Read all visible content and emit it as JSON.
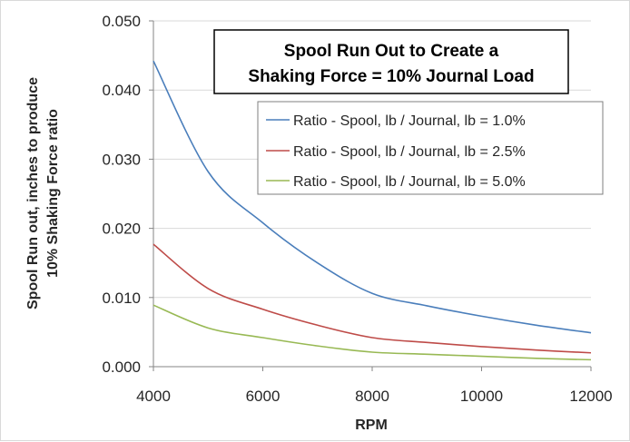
{
  "chart_data": {
    "type": "line",
    "title_lines": [
      "Spool Run Out to Create a",
      "Shaking Force = 10% Journal Load"
    ],
    "xlabel": "RPM",
    "ylabel_lines": [
      "Spool Run out, inches to produce",
      "10% Shaking Force ratio"
    ],
    "xlim": [
      4000,
      12000
    ],
    "ylim": [
      0,
      0.05
    ],
    "x_ticks": [
      4000,
      6000,
      8000,
      10000,
      12000
    ],
    "x_tick_labels": [
      "4000",
      "6000",
      "8000",
      "10000",
      "12000"
    ],
    "y_ticks": [
      0,
      0.01,
      0.02,
      0.03,
      0.04,
      0.05
    ],
    "y_tick_labels": [
      "0.000",
      "0.010",
      "0.020",
      "0.030",
      "0.040",
      "0.050"
    ],
    "grid": "horizontal",
    "legend_position": "top-right",
    "x": [
      4000,
      5000,
      6000,
      7000,
      8000,
      9000,
      10000,
      11000,
      12000
    ],
    "series": [
      {
        "name": "Ratio - Spool, lb / Journal, lb = 1.0%",
        "color": "#4a7ebb",
        "values": [
          0.0442,
          0.0282,
          0.0208,
          0.015,
          0.0106,
          0.0088,
          0.0073,
          0.006,
          0.0049
        ]
      },
      {
        "name": "Ratio - Spool, lb / Journal, lb = 2.5%",
        "color": "#be4b48",
        "values": [
          0.0177,
          0.0113,
          0.0083,
          0.006,
          0.0042,
          0.0035,
          0.0029,
          0.0024,
          0.002
        ]
      },
      {
        "name": "Ratio - Spool, lb / Journal, lb = 5.0%",
        "color": "#98b954",
        "values": [
          0.0089,
          0.0056,
          0.0042,
          0.003,
          0.0021,
          0.0018,
          0.0015,
          0.0012,
          0.001
        ]
      }
    ]
  }
}
